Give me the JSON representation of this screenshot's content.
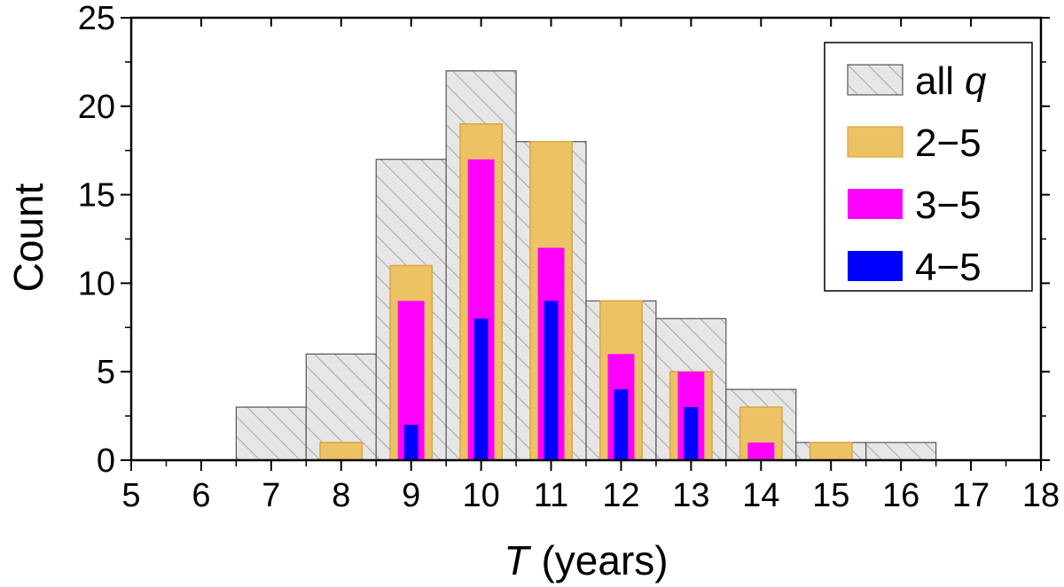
{
  "chart_data": {
    "type": "bar",
    "xlabel": "T",
    "xlabel_unit": "(years)",
    "ylabel": "Count",
    "xlim": [
      5,
      18
    ],
    "ylim": [
      0,
      25
    ],
    "xticks": [
      5,
      6,
      7,
      8,
      9,
      10,
      11,
      12,
      13,
      14,
      15,
      16,
      17,
      18
    ],
    "yticks": [
      0,
      5,
      10,
      15,
      20,
      25
    ],
    "bin_width": 1,
    "grid": false,
    "legend_position": "top-right",
    "series": [
      {
        "name": "all",
        "name_italic_suffix": "q",
        "color": "#e6e6e6",
        "pattern": "hatched",
        "x": [
          7,
          8,
          9,
          10,
          11,
          12,
          13,
          14,
          15,
          16
        ],
        "values": [
          3,
          6,
          17,
          22,
          18,
          9,
          8,
          4,
          1,
          1
        ]
      },
      {
        "name": "2−5",
        "color": "#ecc265",
        "x": [
          8,
          9,
          10,
          11,
          12,
          13,
          14,
          15
        ],
        "values": [
          1,
          11,
          19,
          18,
          9,
          5,
          3,
          1
        ]
      },
      {
        "name": "3−5",
        "color": "#ff00ff",
        "x": [
          9,
          10,
          11,
          12,
          13,
          14
        ],
        "values": [
          9,
          17,
          12,
          6,
          5,
          1
        ]
      },
      {
        "name": "4−5",
        "color": "#0000ff",
        "x": [
          9,
          10,
          11,
          12,
          13
        ],
        "values": [
          2,
          8,
          9,
          4,
          3
        ]
      }
    ]
  }
}
